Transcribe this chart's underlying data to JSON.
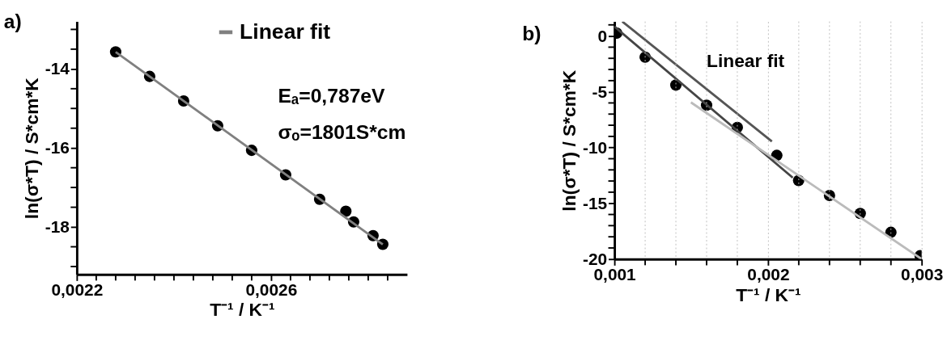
{
  "chart_data": [
    {
      "type": "scatter",
      "xlabel": "T⁻¹ / K⁻¹",
      "ylabel": "ln(σ*T) / S*cm*K",
      "legend": "top right",
      "grid": false,
      "xlim": [
        0.0022,
        0.00288
      ],
      "ylim": [
        -19.2,
        -12.8
      ],
      "xticks": [
        {
          "value": 0.0022,
          "label": "0,0022"
        },
        {
          "value": 0.00224,
          "label": null
        },
        {
          "value": 0.00228,
          "label": null
        },
        {
          "value": 0.00232,
          "label": null
        },
        {
          "value": 0.00236,
          "label": null
        },
        {
          "value": 0.0024,
          "label": null
        },
        {
          "value": 0.00244,
          "label": null
        },
        {
          "value": 0.00248,
          "label": null
        },
        {
          "value": 0.00252,
          "label": null
        },
        {
          "value": 0.00256,
          "label": null
        },
        {
          "value": 0.0026,
          "label": "0,0026"
        },
        {
          "value": 0.00264,
          "label": null
        },
        {
          "value": 0.00268,
          "label": null
        },
        {
          "value": 0.00272,
          "label": null
        },
        {
          "value": 0.00276,
          "label": null
        },
        {
          "value": 0.0028,
          "label": null
        },
        {
          "value": 0.00284,
          "label": null
        }
      ],
      "yticks": [
        {
          "value": -19,
          "label": null
        },
        {
          "value": -18.5,
          "label": null
        },
        -18,
        {
          "value": -17.5,
          "label": null
        },
        {
          "value": -17,
          "label": null
        },
        {
          "value": -16.5,
          "label": null
        },
        -16,
        {
          "value": -15.5,
          "label": null
        },
        {
          "value": -15,
          "label": null
        },
        {
          "value": -14.5,
          "label": null
        },
        -14,
        {
          "value": -13.5,
          "label": null
        },
        {
          "value": -13,
          "label": null
        }
      ],
      "series": [
        {
          "type": "scatter",
          "marker": "circle",
          "color": "#000000",
          "x": [
            0.00228,
            0.00235,
            0.00242,
            0.00249,
            0.00256,
            0.00263,
            0.0027,
            0.002754,
            0.00277,
            0.00281,
            0.00283
          ],
          "values": [
            -13.57,
            -14.19,
            -14.81,
            -15.44,
            -16.06,
            -16.68,
            -17.3,
            -17.6,
            -17.87,
            -18.22,
            -18.44
          ]
        },
        {
          "type": "line",
          "name": "Linear fit",
          "color": "#808080",
          "x": [
            0.00228,
            0.00283
          ],
          "values": [
            -13.57,
            -18.44
          ]
        }
      ],
      "annotations": [
        "a)",
        "Eₐ=0,787eV",
        "σₒ=1801S*cm"
      ]
    },
    {
      "type": "scatter",
      "xlabel": "T⁻¹ / K⁻¹",
      "ylabel": "ln(σ*T) / S*cm*K",
      "grid": "x",
      "xlim": [
        0.001,
        0.003
      ],
      "ylim": [
        -20,
        1.3
      ],
      "xticks": [
        {
          "value": 0.001,
          "label": "0,001"
        },
        {
          "value": 0.0012,
          "label": null
        },
        {
          "value": 0.0014,
          "label": null
        },
        {
          "value": 0.0016,
          "label": null
        },
        {
          "value": 0.0018,
          "label": null
        },
        {
          "value": 0.002,
          "label": "0,002"
        },
        {
          "value": 0.0022,
          "label": null
        },
        {
          "value": 0.0024,
          "label": null
        },
        {
          "value": 0.0026,
          "label": null
        },
        {
          "value": 0.0028,
          "label": null
        },
        {
          "value": 0.003,
          "label": "0,003"
        }
      ],
      "yticks": [
        -20,
        {
          "value": -19,
          "label": null
        },
        {
          "value": -18,
          "label": null
        },
        {
          "value": -17,
          "label": null
        },
        {
          "value": -16,
          "label": null
        },
        -15,
        {
          "value": -14,
          "label": null
        },
        {
          "value": -13,
          "label": null
        },
        {
          "value": -12,
          "label": null
        },
        {
          "value": -11,
          "label": null
        },
        -10,
        {
          "value": -9,
          "label": null
        },
        {
          "value": -8,
          "label": null
        },
        {
          "value": -7,
          "label": null
        },
        {
          "value": -6,
          "label": null
        },
        -5,
        {
          "value": -4,
          "label": null
        },
        {
          "value": -3,
          "label": null
        },
        {
          "value": -2,
          "label": null
        },
        {
          "value": -1,
          "label": null
        },
        0,
        {
          "value": 1,
          "label": null
        }
      ],
      "series": [
        {
          "type": "scatter",
          "marker": "circle",
          "color": "#000000",
          "x": [
            0.001015,
            0.0012,
            0.0014,
            0.0016,
            0.0018,
            0.002057,
            0.002199,
            0.0024,
            0.0026,
            0.0028,
            0.00299
          ],
          "values": [
            0.26,
            -1.9,
            -4.4,
            -6.2,
            -8.2,
            -10.7,
            -12.96,
            -14.3,
            -15.9,
            -17.6,
            -19.7
          ]
        },
        {
          "type": "line",
          "color": "#555555",
          "x": [
            0.001051,
            0.002025
          ],
          "values": [
            1.3,
            -9.45
          ]
        },
        {
          "type": "line",
          "color": "#444444",
          "x": [
            0.001,
            0.002161
          ],
          "values": [
            0.85,
            -12.7
          ]
        },
        {
          "type": "line",
          "color": "#bbbbbb",
          "x": [
            0.001498,
            0.003
          ],
          "values": [
            -5.95,
            -20
          ]
        }
      ],
      "annotations": [
        "b)",
        "Linear fit"
      ]
    }
  ]
}
